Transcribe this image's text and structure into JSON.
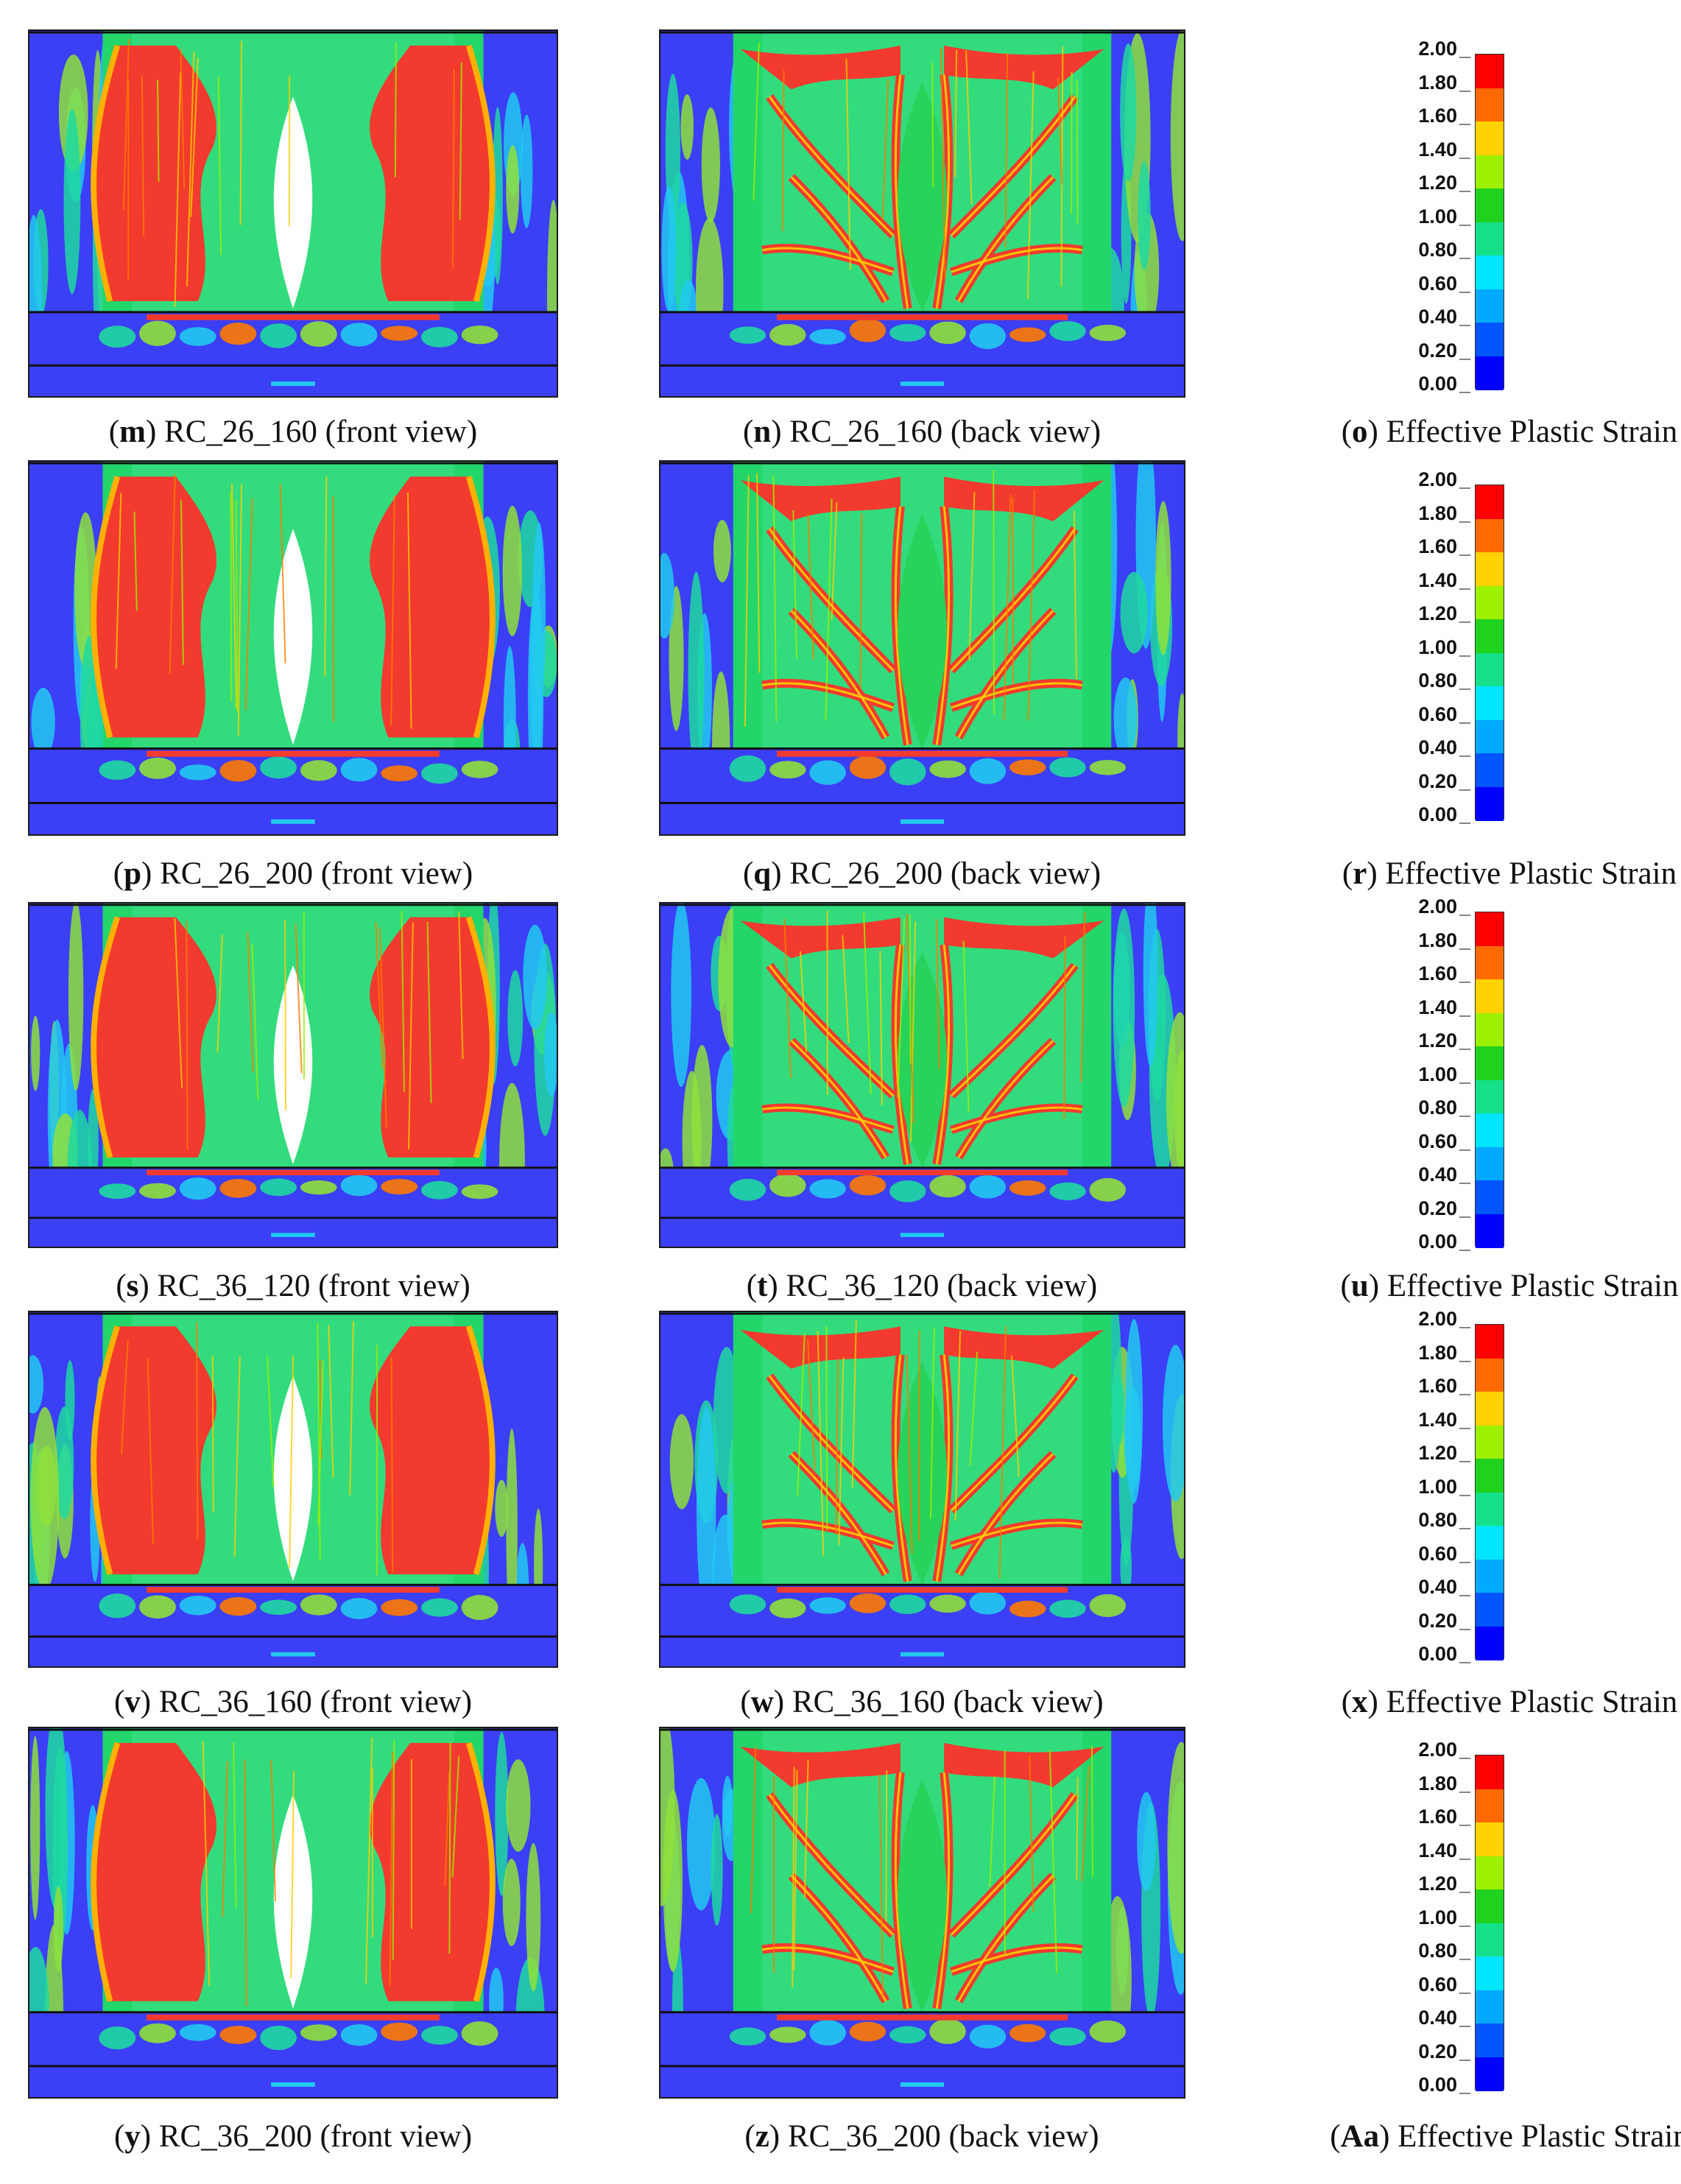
{
  "legend": {
    "ticks": [
      "2.00",
      "1.80",
      "1.60",
      "1.40",
      "1.20",
      "1.00",
      "0.80",
      "0.60",
      "0.40",
      "0.20",
      "0.00"
    ],
    "colors": [
      "#ff0000",
      "#ff6a00",
      "#ffd200",
      "#9cf000",
      "#1ed21e",
      "#15e08a",
      "#00e6ff",
      "#00aaff",
      "#0055ff",
      "#0000ff"
    ]
  },
  "rows": [
    {
      "front": {
        "letter": "m",
        "label": "RC_26_160 (front view)"
      },
      "back": {
        "letter": "n",
        "label": "RC_26_160 (back view)"
      },
      "legend": {
        "letter": "o",
        "label": "Effective Plastic Strain"
      }
    },
    {
      "front": {
        "letter": "p",
        "label": "RC_26_200 (front view)"
      },
      "back": {
        "letter": "q",
        "label": "RC_26_200 (back view)"
      },
      "legend": {
        "letter": "r",
        "label": "Effective Plastic Strain"
      }
    },
    {
      "front": {
        "letter": "s",
        "label": "RC_36_120 (front view)"
      },
      "back": {
        "letter": "t",
        "label": "RC_36_120 (back view)"
      },
      "legend": {
        "letter": "u",
        "label": "Effective Plastic Strain"
      }
    },
    {
      "front": {
        "letter": "v",
        "label": "RC_36_160 (front view)"
      },
      "back": {
        "letter": "w",
        "label": "RC_36_160 (back view)"
      },
      "legend": {
        "letter": "x",
        "label": "Effective Plastic Strain"
      }
    },
    {
      "front": {
        "letter": "y",
        "label": "RC_36_200 (front view)"
      },
      "back": {
        "letter": "z",
        "label": "RC_36_200 (back view)"
      },
      "legend": {
        "letter": "Aa",
        "label": "Effective Plastic Strain"
      }
    }
  ]
}
